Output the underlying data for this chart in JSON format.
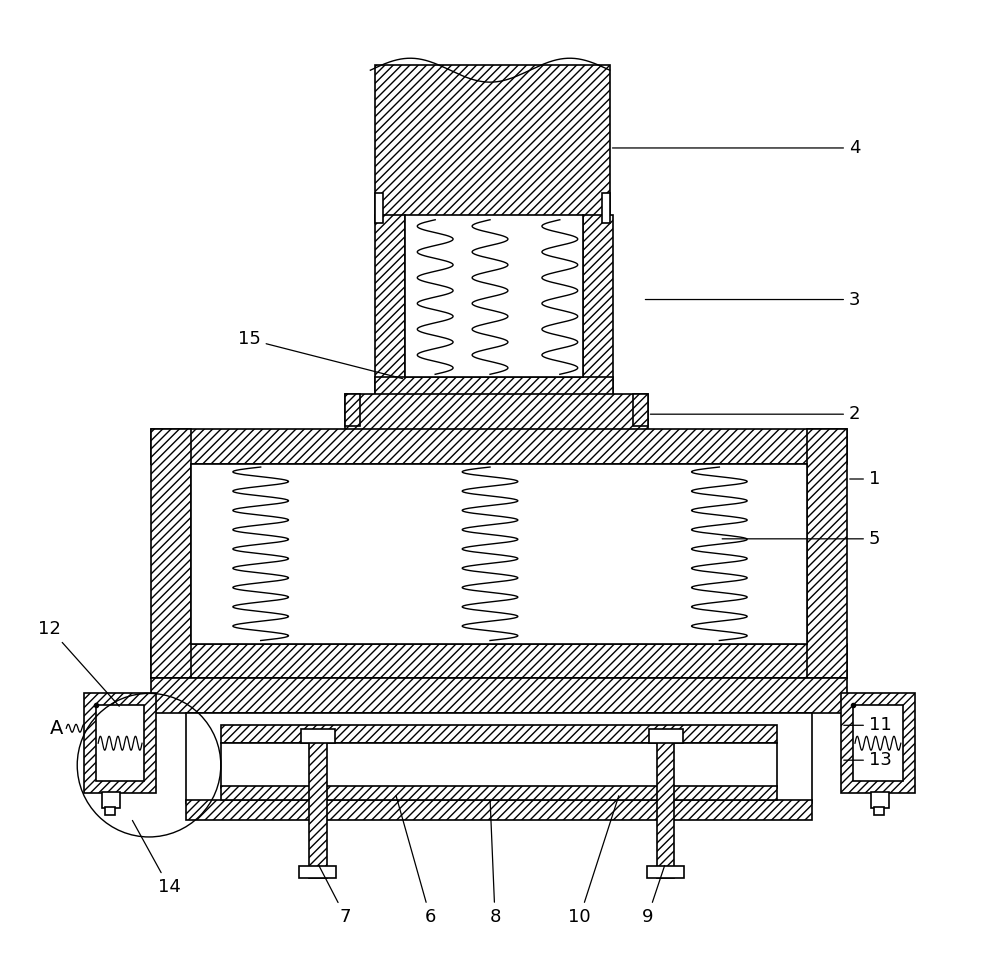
{
  "bg_color": "#ffffff",
  "line_color": "#000000",
  "figsize": [
    10.0,
    9.59
  ],
  "dpi": 100,
  "lw": 1.2,
  "hatch": "////",
  "fs": 13
}
